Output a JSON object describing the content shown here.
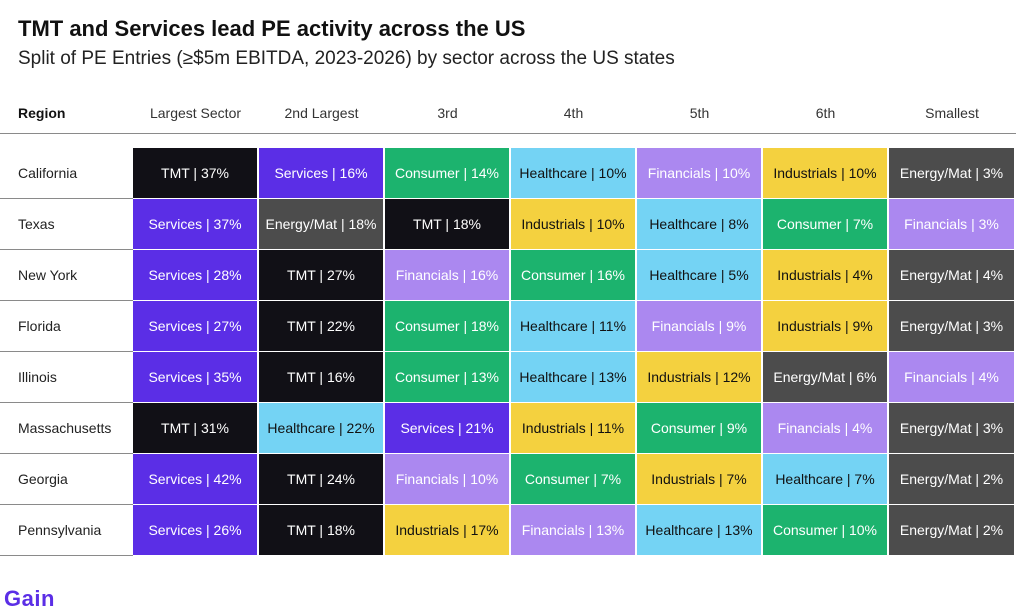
{
  "title": "TMT and Services lead PE activity across the US",
  "subtitle": "Split of PE Entries (≥$5m EBITDA, 2023-2026) by sector across the US states",
  "logo": "Gain",
  "colors": {
    "TMT": "#111016",
    "Services": "#5b2ee6",
    "Consumer": "#1cb36e",
    "Healthcare": "#74d3f4",
    "Financials": "#ab88f0",
    "Industrials": "#f4d13f",
    "Energy/Mat": "#4c4c4c"
  },
  "text_colors": {
    "TMT": "#ffffff",
    "Services": "#ffffff",
    "Consumer": "#ffffff",
    "Healthcare": "#111111",
    "Financials": "#ffffff",
    "Industrials": "#111111",
    "Energy/Mat": "#ffffff"
  },
  "chart_data": {
    "type": "table",
    "columns": [
      "Region",
      "Largest Sector",
      "2nd Largest",
      "3rd",
      "4th",
      "5th",
      "6th",
      "Smallest"
    ],
    "rows": [
      {
        "region": "California",
        "cells": [
          {
            "sector": "TMT",
            "label": "TMT | 37%",
            "value": 37
          },
          {
            "sector": "Services",
            "label": "Services | 16%",
            "value": 16
          },
          {
            "sector": "Consumer",
            "label": "Consumer | 14%",
            "value": 14
          },
          {
            "sector": "Healthcare",
            "label": "Healthcare | 10%",
            "value": 10
          },
          {
            "sector": "Financials",
            "label": "Financials | 10%",
            "value": 10
          },
          {
            "sector": "Industrials",
            "label": "Industrials | 10%",
            "value": 10
          },
          {
            "sector": "Energy/Mat",
            "label": "Energy/Mat | 3%",
            "value": 3
          }
        ]
      },
      {
        "region": "Texas",
        "cells": [
          {
            "sector": "Services",
            "label": "Services | 37%",
            "value": 37
          },
          {
            "sector": "Energy/Mat",
            "label": "Energy/Mat | 18%",
            "value": 18
          },
          {
            "sector": "TMT",
            "label": "TMT | 18%",
            "value": 18
          },
          {
            "sector": "Industrials",
            "label": "Industrials | 10%",
            "value": 10
          },
          {
            "sector": "Healthcare",
            "label": "Healthcare | 8%",
            "value": 8
          },
          {
            "sector": "Consumer",
            "label": "Consumer | 7%",
            "value": 7
          },
          {
            "sector": "Financials",
            "label": "Financials | 3%",
            "value": 3
          }
        ]
      },
      {
        "region": "New York",
        "cells": [
          {
            "sector": "Services",
            "label": "Services | 28%",
            "value": 28
          },
          {
            "sector": "TMT",
            "label": "TMT | 27%",
            "value": 27
          },
          {
            "sector": "Financials",
            "label": "Financials | 16%",
            "value": 16
          },
          {
            "sector": "Consumer",
            "label": "Consumer | 16%",
            "value": 16
          },
          {
            "sector": "Healthcare",
            "label": "Healthcare | 5%",
            "value": 5
          },
          {
            "sector": "Industrials",
            "label": "Industrials | 4%",
            "value": 4
          },
          {
            "sector": "Energy/Mat",
            "label": "Energy/Mat | 4%",
            "value": 4
          }
        ]
      },
      {
        "region": "Florida",
        "cells": [
          {
            "sector": "Services",
            "label": "Services | 27%",
            "value": 27
          },
          {
            "sector": "TMT",
            "label": "TMT | 22%",
            "value": 22
          },
          {
            "sector": "Consumer",
            "label": "Consumer | 18%",
            "value": 18
          },
          {
            "sector": "Healthcare",
            "label": "Healthcare | 11%",
            "value": 11
          },
          {
            "sector": "Financials",
            "label": "Financials | 9%",
            "value": 9
          },
          {
            "sector": "Industrials",
            "label": "Industrials | 9%",
            "value": 9
          },
          {
            "sector": "Energy/Mat",
            "label": "Energy/Mat | 3%",
            "value": 3
          }
        ]
      },
      {
        "region": "Illinois",
        "cells": [
          {
            "sector": "Services",
            "label": "Services | 35%",
            "value": 35
          },
          {
            "sector": "TMT",
            "label": "TMT | 16%",
            "value": 16
          },
          {
            "sector": "Consumer",
            "label": "Consumer | 13%",
            "value": 13
          },
          {
            "sector": "Healthcare",
            "label": "Healthcare | 13%",
            "value": 13
          },
          {
            "sector": "Industrials",
            "label": "Industrials | 12%",
            "value": 12
          },
          {
            "sector": "Energy/Mat",
            "label": "Energy/Mat | 6%",
            "value": 6
          },
          {
            "sector": "Financials",
            "label": "Financials | 4%",
            "value": 4
          }
        ]
      },
      {
        "region": "Massachusetts",
        "cells": [
          {
            "sector": "TMT",
            "label": "TMT | 31%",
            "value": 31
          },
          {
            "sector": "Healthcare",
            "label": "Healthcare | 22%",
            "value": 22
          },
          {
            "sector": "Services",
            "label": "Services | 21%",
            "value": 21
          },
          {
            "sector": "Industrials",
            "label": "Industrials | 11%",
            "value": 11
          },
          {
            "sector": "Consumer",
            "label": "Consumer | 9%",
            "value": 9
          },
          {
            "sector": "Financials",
            "label": "Financials | 4%",
            "value": 4
          },
          {
            "sector": "Energy/Mat",
            "label": "Energy/Mat | 3%",
            "value": 3
          }
        ]
      },
      {
        "region": "Georgia",
        "cells": [
          {
            "sector": "Services",
            "label": "Services | 42%",
            "value": 42
          },
          {
            "sector": "TMT",
            "label": "TMT | 24%",
            "value": 24
          },
          {
            "sector": "Financials",
            "label": "Financials | 10%",
            "value": 10
          },
          {
            "sector": "Consumer",
            "label": "Consumer | 7%",
            "value": 7
          },
          {
            "sector": "Industrials",
            "label": "Industrials | 7%",
            "value": 7
          },
          {
            "sector": "Healthcare",
            "label": "Healthcare | 7%",
            "value": 7
          },
          {
            "sector": "Energy/Mat",
            "label": "Energy/Mat | 2%",
            "value": 2
          }
        ]
      },
      {
        "region": "Pennsylvania",
        "cells": [
          {
            "sector": "Services",
            "label": "Services | 26%",
            "value": 26
          },
          {
            "sector": "TMT",
            "label": "TMT | 18%",
            "value": 18
          },
          {
            "sector": "Industrials",
            "label": "Industrials | 17%",
            "value": 17
          },
          {
            "sector": "Financials",
            "label": "Financials | 13%",
            "value": 13
          },
          {
            "sector": "Healthcare",
            "label": "Healthcare | 13%",
            "value": 13
          },
          {
            "sector": "Consumer",
            "label": "Consumer | 10%",
            "value": 10
          },
          {
            "sector": "Energy/Mat",
            "label": "Energy/Mat | 2%",
            "value": 2
          }
        ]
      }
    ]
  }
}
